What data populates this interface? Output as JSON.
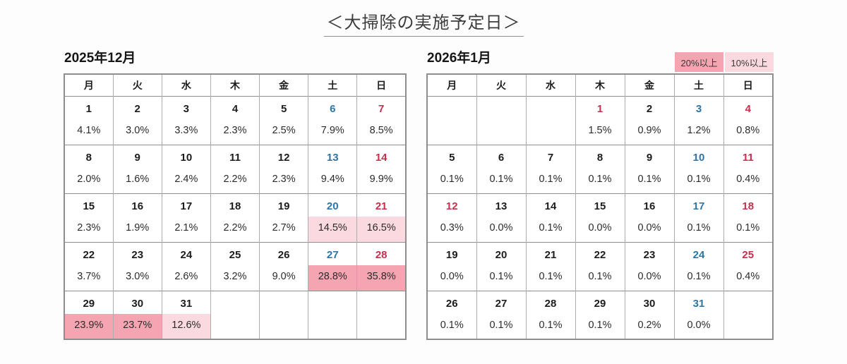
{
  "title": "＜大掃除の実施予定日＞",
  "legend": [
    {
      "label": "20%以上",
      "color": "#f5a5b2"
    },
    {
      "label": "10%以上",
      "color": "#fbd9e0"
    }
  ],
  "colors": {
    "saturday": "#2e74a4",
    "sunday": "#c5304c",
    "holiday": "#c5304c",
    "weekday_text": "#1c1c1c",
    "hl20": "#f5a5b2",
    "hl10": "#fbd9e0",
    "border_outer": "#8e8e8e",
    "border_inner": "#adadad"
  },
  "day_headers": [
    {
      "label": "月",
      "type": "weekday"
    },
    {
      "label": "火",
      "type": "weekday"
    },
    {
      "label": "水",
      "type": "weekday"
    },
    {
      "label": "木",
      "type": "weekday"
    },
    {
      "label": "金",
      "type": "weekday"
    },
    {
      "label": "土",
      "type": "sat"
    },
    {
      "label": "日",
      "type": "sun"
    }
  ],
  "calendars": [
    {
      "title": "2025年12月",
      "weeks": [
        {
          "days": [
            {
              "d": "1",
              "type": "weekday"
            },
            {
              "d": "2",
              "type": "weekday"
            },
            {
              "d": "3",
              "type": "weekday"
            },
            {
              "d": "4",
              "type": "weekday"
            },
            {
              "d": "5",
              "type": "weekday"
            },
            {
              "d": "6",
              "type": "sat"
            },
            {
              "d": "7",
              "type": "sun"
            }
          ],
          "vals": [
            {
              "v": "4.1%",
              "hl": ""
            },
            {
              "v": "3.0%",
              "hl": ""
            },
            {
              "v": "3.3%",
              "hl": ""
            },
            {
              "v": "2.3%",
              "hl": ""
            },
            {
              "v": "2.5%",
              "hl": ""
            },
            {
              "v": "7.9%",
              "hl": ""
            },
            {
              "v": "8.5%",
              "hl": ""
            }
          ]
        },
        {
          "days": [
            {
              "d": "8",
              "type": "weekday"
            },
            {
              "d": "9",
              "type": "weekday"
            },
            {
              "d": "10",
              "type": "weekday"
            },
            {
              "d": "11",
              "type": "weekday"
            },
            {
              "d": "12",
              "type": "weekday"
            },
            {
              "d": "13",
              "type": "sat"
            },
            {
              "d": "14",
              "type": "sun"
            }
          ],
          "vals": [
            {
              "v": "2.0%",
              "hl": ""
            },
            {
              "v": "1.6%",
              "hl": ""
            },
            {
              "v": "2.4%",
              "hl": ""
            },
            {
              "v": "2.2%",
              "hl": ""
            },
            {
              "v": "2.3%",
              "hl": ""
            },
            {
              "v": "9.4%",
              "hl": ""
            },
            {
              "v": "9.9%",
              "hl": ""
            }
          ]
        },
        {
          "days": [
            {
              "d": "15",
              "type": "weekday"
            },
            {
              "d": "16",
              "type": "weekday"
            },
            {
              "d": "17",
              "type": "weekday"
            },
            {
              "d": "18",
              "type": "weekday"
            },
            {
              "d": "19",
              "type": "weekday"
            },
            {
              "d": "20",
              "type": "sat"
            },
            {
              "d": "21",
              "type": "sun"
            }
          ],
          "vals": [
            {
              "v": "2.3%",
              "hl": ""
            },
            {
              "v": "1.9%",
              "hl": ""
            },
            {
              "v": "2.1%",
              "hl": ""
            },
            {
              "v": "2.2%",
              "hl": ""
            },
            {
              "v": "2.7%",
              "hl": ""
            },
            {
              "v": "14.5%",
              "hl": "hl10"
            },
            {
              "v": "16.5%",
              "hl": "hl10"
            }
          ]
        },
        {
          "days": [
            {
              "d": "22",
              "type": "weekday"
            },
            {
              "d": "23",
              "type": "weekday"
            },
            {
              "d": "24",
              "type": "weekday"
            },
            {
              "d": "25",
              "type": "weekday"
            },
            {
              "d": "26",
              "type": "weekday"
            },
            {
              "d": "27",
              "type": "sat"
            },
            {
              "d": "28",
              "type": "sun"
            }
          ],
          "vals": [
            {
              "v": "3.7%",
              "hl": ""
            },
            {
              "v": "3.0%",
              "hl": ""
            },
            {
              "v": "2.6%",
              "hl": ""
            },
            {
              "v": "3.2%",
              "hl": ""
            },
            {
              "v": "9.0%",
              "hl": ""
            },
            {
              "v": "28.8%",
              "hl": "hl20"
            },
            {
              "v": "35.8%",
              "hl": "hl20"
            }
          ]
        },
        {
          "days": [
            {
              "d": "29",
              "type": "weekday"
            },
            {
              "d": "30",
              "type": "weekday"
            },
            {
              "d": "31",
              "type": "weekday"
            },
            {
              "d": "",
              "type": "empty"
            },
            {
              "d": "",
              "type": "empty"
            },
            {
              "d": "",
              "type": "empty"
            },
            {
              "d": "",
              "type": "empty"
            }
          ],
          "vals": [
            {
              "v": "23.9%",
              "hl": "hl20"
            },
            {
              "v": "23.7%",
              "hl": "hl20"
            },
            {
              "v": "12.6%",
              "hl": "hl10"
            },
            {
              "v": "",
              "hl": ""
            },
            {
              "v": "",
              "hl": ""
            },
            {
              "v": "",
              "hl": ""
            },
            {
              "v": "",
              "hl": ""
            }
          ]
        }
      ]
    },
    {
      "title": "2026年1月",
      "weeks": [
        {
          "days": [
            {
              "d": "",
              "type": "empty"
            },
            {
              "d": "",
              "type": "empty"
            },
            {
              "d": "",
              "type": "empty"
            },
            {
              "d": "1",
              "type": "holiday"
            },
            {
              "d": "2",
              "type": "weekday"
            },
            {
              "d": "3",
              "type": "sat"
            },
            {
              "d": "4",
              "type": "sun"
            }
          ],
          "vals": [
            {
              "v": "",
              "hl": ""
            },
            {
              "v": "",
              "hl": ""
            },
            {
              "v": "",
              "hl": ""
            },
            {
              "v": "1.5%",
              "hl": ""
            },
            {
              "v": "0.9%",
              "hl": ""
            },
            {
              "v": "1.2%",
              "hl": ""
            },
            {
              "v": "0.8%",
              "hl": ""
            }
          ]
        },
        {
          "days": [
            {
              "d": "5",
              "type": "weekday"
            },
            {
              "d": "6",
              "type": "weekday"
            },
            {
              "d": "7",
              "type": "weekday"
            },
            {
              "d": "8",
              "type": "weekday"
            },
            {
              "d": "9",
              "type": "weekday"
            },
            {
              "d": "10",
              "type": "sat"
            },
            {
              "d": "11",
              "type": "sun"
            }
          ],
          "vals": [
            {
              "v": "0.1%",
              "hl": ""
            },
            {
              "v": "0.1%",
              "hl": ""
            },
            {
              "v": "0.1%",
              "hl": ""
            },
            {
              "v": "0.1%",
              "hl": ""
            },
            {
              "v": "0.1%",
              "hl": ""
            },
            {
              "v": "0.1%",
              "hl": ""
            },
            {
              "v": "0.4%",
              "hl": ""
            }
          ]
        },
        {
          "days": [
            {
              "d": "12",
              "type": "holiday"
            },
            {
              "d": "13",
              "type": "weekday"
            },
            {
              "d": "14",
              "type": "weekday"
            },
            {
              "d": "15",
              "type": "weekday"
            },
            {
              "d": "16",
              "type": "weekday"
            },
            {
              "d": "17",
              "type": "sat"
            },
            {
              "d": "18",
              "type": "sun"
            }
          ],
          "vals": [
            {
              "v": "0.3%",
              "hl": ""
            },
            {
              "v": "0.0%",
              "hl": ""
            },
            {
              "v": "0.1%",
              "hl": ""
            },
            {
              "v": "0.0%",
              "hl": ""
            },
            {
              "v": "0.0%",
              "hl": ""
            },
            {
              "v": "0.1%",
              "hl": ""
            },
            {
              "v": "0.1%",
              "hl": ""
            }
          ]
        },
        {
          "days": [
            {
              "d": "19",
              "type": "weekday"
            },
            {
              "d": "20",
              "type": "weekday"
            },
            {
              "d": "21",
              "type": "weekday"
            },
            {
              "d": "22",
              "type": "weekday"
            },
            {
              "d": "23",
              "type": "weekday"
            },
            {
              "d": "24",
              "type": "sat"
            },
            {
              "d": "25",
              "type": "sun"
            }
          ],
          "vals": [
            {
              "v": "0.0%",
              "hl": ""
            },
            {
              "v": "0.1%",
              "hl": ""
            },
            {
              "v": "0.1%",
              "hl": ""
            },
            {
              "v": "0.1%",
              "hl": ""
            },
            {
              "v": "0.0%",
              "hl": ""
            },
            {
              "v": "0.1%",
              "hl": ""
            },
            {
              "v": "0.4%",
              "hl": ""
            }
          ]
        },
        {
          "days": [
            {
              "d": "26",
              "type": "weekday"
            },
            {
              "d": "27",
              "type": "weekday"
            },
            {
              "d": "28",
              "type": "weekday"
            },
            {
              "d": "29",
              "type": "weekday"
            },
            {
              "d": "30",
              "type": "weekday"
            },
            {
              "d": "31",
              "type": "sat"
            },
            {
              "d": "",
              "type": "empty"
            }
          ],
          "vals": [
            {
              "v": "0.1%",
              "hl": ""
            },
            {
              "v": "0.1%",
              "hl": ""
            },
            {
              "v": "0.1%",
              "hl": ""
            },
            {
              "v": "0.1%",
              "hl": ""
            },
            {
              "v": "0.2%",
              "hl": ""
            },
            {
              "v": "0.0%",
              "hl": ""
            },
            {
              "v": "",
              "hl": ""
            }
          ]
        }
      ]
    }
  ],
  "chart_data": {
    "type": "heatmap",
    "title": "＜大掃除の実施予定日＞",
    "legend": [
      "20%以上",
      "10%以上"
    ],
    "legend_position": "top-right",
    "day_of_week_labels": [
      "月",
      "火",
      "水",
      "木",
      "金",
      "土",
      "日"
    ],
    "series": [
      {
        "name": "2025年12月",
        "x": [
          1,
          2,
          3,
          4,
          5,
          6,
          7,
          8,
          9,
          10,
          11,
          12,
          13,
          14,
          15,
          16,
          17,
          18,
          19,
          20,
          21,
          22,
          23,
          24,
          25,
          26,
          27,
          28,
          29,
          30,
          31
        ],
        "values": [
          4.1,
          3.0,
          3.3,
          2.3,
          2.5,
          7.9,
          8.5,
          2.0,
          1.6,
          2.4,
          2.2,
          2.3,
          9.4,
          9.9,
          2.3,
          1.9,
          2.1,
          2.2,
          2.7,
          14.5,
          16.5,
          3.7,
          3.0,
          2.6,
          3.2,
          9.0,
          28.8,
          35.8,
          23.9,
          23.7,
          12.6
        ],
        "start_weekday": "月"
      },
      {
        "name": "2026年1月",
        "x": [
          1,
          2,
          3,
          4,
          5,
          6,
          7,
          8,
          9,
          10,
          11,
          12,
          13,
          14,
          15,
          16,
          17,
          18,
          19,
          20,
          21,
          22,
          23,
          24,
          25,
          26,
          27,
          28,
          29,
          30,
          31
        ],
        "values": [
          1.5,
          0.9,
          1.2,
          0.8,
          0.1,
          0.1,
          0.1,
          0.1,
          0.1,
          0.1,
          0.4,
          0.3,
          0.0,
          0.1,
          0.0,
          0.0,
          0.1,
          0.1,
          0.0,
          0.1,
          0.1,
          0.1,
          0.0,
          0.1,
          0.4,
          0.1,
          0.1,
          0.1,
          0.1,
          0.2,
          0.0
        ],
        "start_weekday": "木"
      }
    ],
    "highlight_rule": "cell percentage >= 20% dark pink, >= 10% light pink"
  }
}
